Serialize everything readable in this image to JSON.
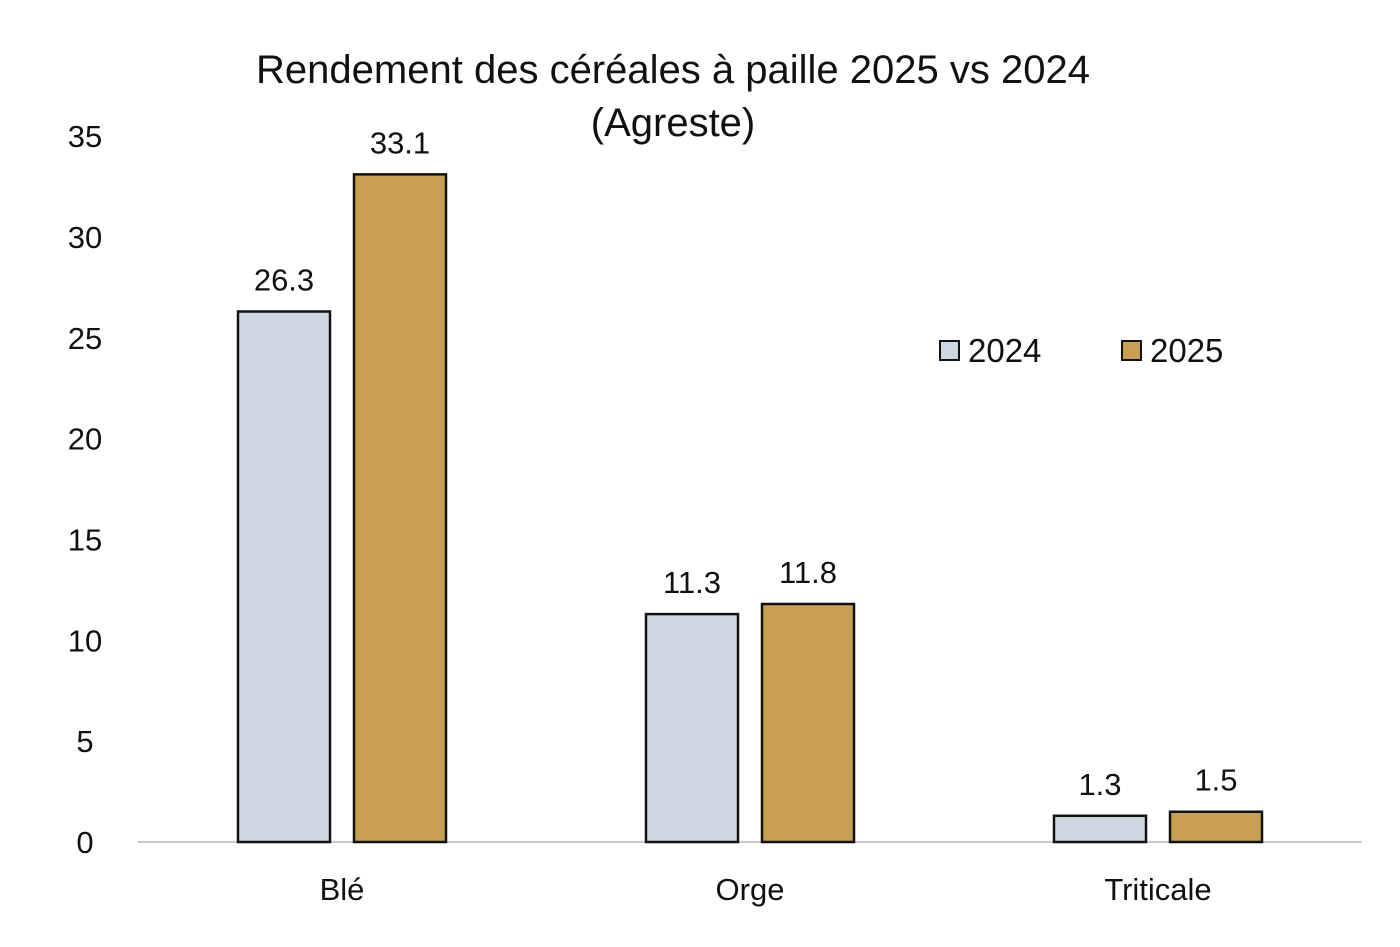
{
  "chart_data": {
    "type": "bar",
    "title": "Rendement des céréales à paille 2025 vs 2024",
    "subtitle": "(Agreste)",
    "categories": [
      "Blé",
      "Orge",
      "Triticale"
    ],
    "series": [
      {
        "name": "2024",
        "values": [
          26.3,
          11.3,
          1.3
        ],
        "labels": [
          "26.3",
          "11.3",
          "1.3"
        ],
        "color": "#cdd7e1"
      },
      {
        "name": "2025",
        "values": [
          33.1,
          11.8,
          1.5
        ],
        "labels": [
          "33.1",
          "11.8",
          "1.5"
        ],
        "color": "#c9a052"
      }
    ],
    "yticks": [
      "0",
      "5",
      "10",
      "15",
      "20",
      "25",
      "30",
      "35"
    ],
    "ylim": [
      0,
      35
    ],
    "xlabel": "",
    "ylabel": "",
    "grid": false,
    "legend": "right",
    "border_color": "#111111",
    "axis_color": "#c8c8c8"
  }
}
